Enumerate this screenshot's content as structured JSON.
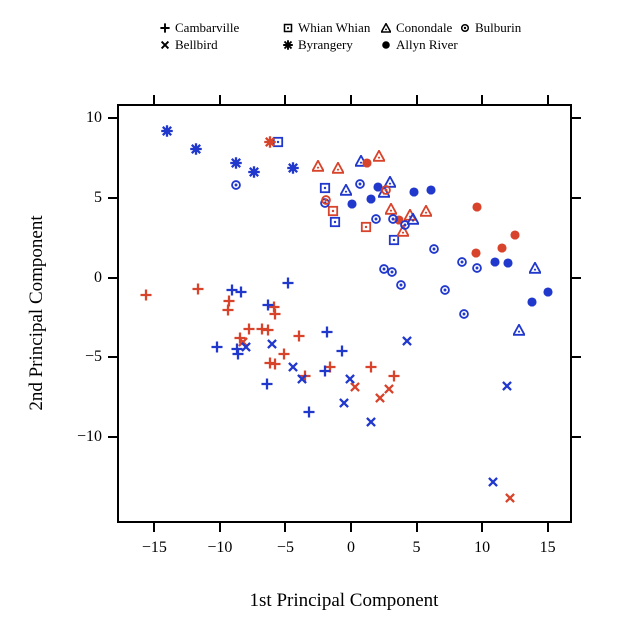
{
  "figure": {
    "background": "#ffffff",
    "axis_color": "#000000"
  },
  "colors": {
    "red_group": "#d8432b",
    "blue_group": "#2138cd",
    "legend_symbol": "#000000"
  },
  "legend": {
    "entries": [
      {
        "label": "Cambarville",
        "marker": "plus",
        "col": 0,
        "row": 0
      },
      {
        "label": "Bellbird",
        "marker": "cross",
        "col": 0,
        "row": 1
      },
      {
        "label": "Whian Whian",
        "marker": "square-dot",
        "col": 1,
        "row": 0
      },
      {
        "label": "Byrangery",
        "marker": "asterisk",
        "col": 1,
        "row": 1
      },
      {
        "label": "Conondale",
        "marker": "triangle-dot",
        "col": 2,
        "row": 0
      },
      {
        "label": "Allyn River",
        "marker": "circle-filled",
        "col": 2,
        "row": 1
      },
      {
        "label": "Bulburin",
        "marker": "circle-dot",
        "col": 3,
        "row": 0
      }
    ]
  },
  "chart_data": {
    "type": "scatter",
    "title": "",
    "xlabel": "1st Principal Component",
    "ylabel": "2nd Principal Component",
    "xlim": [
      -17.85,
      16.86
    ],
    "ylim": [
      -15.42,
      10.9
    ],
    "xticks": [
      -15,
      -10,
      -5,
      0,
      5,
      10,
      15
    ],
    "yticks": [
      -10,
      -5,
      0,
      5,
      10
    ],
    "grid": false,
    "legend_position": "top",
    "point_colors": {
      "r": "#d8432b",
      "b": "#2138cd"
    },
    "series": [
      {
        "name": "Cambarville",
        "marker": "plus",
        "points": [
          [
            -15.6,
            -1.1,
            "r"
          ],
          [
            -11.7,
            -0.75,
            "r"
          ],
          [
            -9.3,
            -1.5,
            "r"
          ],
          [
            -9.4,
            -2.05,
            "r"
          ],
          [
            -5.9,
            -1.85,
            "r"
          ],
          [
            -5.8,
            -2.3,
            "r"
          ],
          [
            -7.8,
            -3.25,
            "r"
          ],
          [
            -6.8,
            -3.25,
            "r"
          ],
          [
            -6.3,
            -3.3,
            "r"
          ],
          [
            -8.5,
            -3.8,
            "r"
          ],
          [
            -4.0,
            -3.7,
            "r"
          ],
          [
            -5.1,
            -4.8,
            "r"
          ],
          [
            -6.2,
            -5.4,
            "r"
          ],
          [
            -5.8,
            -5.45,
            "r"
          ],
          [
            -1.6,
            -5.65,
            "r"
          ],
          [
            1.5,
            -5.6,
            "r"
          ],
          [
            3.3,
            -6.2,
            "r"
          ],
          [
            -3.5,
            -6.2,
            "r"
          ],
          [
            -9.1,
            -0.8,
            "b"
          ],
          [
            -8.4,
            -0.9,
            "b"
          ],
          [
            -4.8,
            -0.35,
            "b"
          ],
          [
            -6.35,
            -1.7,
            "b"
          ],
          [
            -10.25,
            -4.35,
            "b"
          ],
          [
            -8.7,
            -4.5,
            "b"
          ],
          [
            -8.6,
            -4.8,
            "b"
          ],
          [
            -1.8,
            -3.4,
            "b"
          ],
          [
            -0.7,
            -4.6,
            "b"
          ],
          [
            -2.0,
            -5.9,
            "b"
          ],
          [
            -6.4,
            -6.7,
            "b"
          ],
          [
            -3.2,
            -8.45,
            "b"
          ]
        ]
      },
      {
        "name": "Bellbird",
        "marker": "cross",
        "points": [
          [
            -8.2,
            -4.05,
            "r"
          ],
          [
            0.3,
            -6.9,
            "r"
          ],
          [
            2.9,
            -7.0,
            "r"
          ],
          [
            2.2,
            -7.55,
            "r"
          ],
          [
            12.1,
            -13.85,
            "r"
          ],
          [
            -8.0,
            -4.35,
            "b"
          ],
          [
            -6.0,
            -4.15,
            "b"
          ],
          [
            -4.4,
            -5.65,
            "b"
          ],
          [
            -3.7,
            -6.35,
            "b"
          ],
          [
            -0.1,
            -6.4,
            "b"
          ],
          [
            4.3,
            -4.0,
            "b"
          ],
          [
            -0.5,
            -7.9,
            "b"
          ],
          [
            1.5,
            -9.1,
            "b"
          ],
          [
            11.9,
            -6.8,
            "b"
          ],
          [
            10.8,
            -12.85,
            "b"
          ]
        ]
      },
      {
        "name": "Whian Whian",
        "marker": "square-dot",
        "points": [
          [
            -5.6,
            8.5,
            "b"
          ],
          [
            -2.0,
            5.65,
            "b"
          ],
          [
            -1.2,
            3.5,
            "b"
          ],
          [
            3.3,
            2.35,
            "b"
          ],
          [
            -1.4,
            4.2,
            "r"
          ],
          [
            1.15,
            3.2,
            "r"
          ]
        ]
      },
      {
        "name": "Byrangery",
        "marker": "asterisk",
        "points": [
          [
            -14.0,
            9.2,
            "b"
          ],
          [
            -11.8,
            8.1,
            "b"
          ],
          [
            -8.8,
            7.2,
            "b"
          ],
          [
            -7.4,
            6.6,
            "b"
          ],
          [
            -4.4,
            6.9,
            "b"
          ],
          [
            -6.2,
            8.5,
            "r"
          ]
        ]
      },
      {
        "name": "Conondale",
        "marker": "triangle-dot",
        "points": [
          [
            -2.5,
            7.0,
            "r"
          ],
          [
            -1.0,
            6.9,
            "r"
          ],
          [
            2.1,
            7.65,
            "r"
          ],
          [
            3.05,
            4.3,
            "r"
          ],
          [
            4.5,
            3.9,
            "r"
          ],
          [
            5.7,
            4.2,
            "r"
          ],
          [
            4.0,
            2.9,
            "r"
          ],
          [
            0.8,
            7.3,
            "b"
          ],
          [
            3.0,
            6.0,
            "b"
          ],
          [
            -0.4,
            5.5,
            "b"
          ],
          [
            2.5,
            5.4,
            "b"
          ],
          [
            4.7,
            3.7,
            "b"
          ],
          [
            14.0,
            0.6,
            "b"
          ],
          [
            12.8,
            -3.3,
            "b"
          ]
        ]
      },
      {
        "name": "Allyn River",
        "marker": "circle-filled",
        "points": [
          [
            1.2,
            7.2,
            "r"
          ],
          [
            3.65,
            3.6,
            "r"
          ],
          [
            9.6,
            4.4,
            "r"
          ],
          [
            12.5,
            2.7,
            "r"
          ],
          [
            11.5,
            1.85,
            "r"
          ],
          [
            9.5,
            1.55,
            "r"
          ],
          [
            2.05,
            5.7,
            "b"
          ],
          [
            4.8,
            5.35,
            "b"
          ],
          [
            6.1,
            5.5,
            "b"
          ],
          [
            0.05,
            4.6,
            "b"
          ],
          [
            1.55,
            4.95,
            "b"
          ],
          [
            11.0,
            0.95,
            "b"
          ],
          [
            12.0,
            0.9,
            "b"
          ],
          [
            15.0,
            -0.9,
            "b"
          ],
          [
            13.8,
            -1.55,
            "b"
          ]
        ]
      },
      {
        "name": "Bulburin",
        "marker": "circle-dot",
        "points": [
          [
            -8.8,
            5.8,
            "b"
          ],
          [
            0.65,
            5.9,
            "b"
          ],
          [
            1.9,
            3.7,
            "b"
          ],
          [
            3.2,
            3.7,
            "b"
          ],
          [
            4.1,
            3.3,
            "b"
          ],
          [
            2.5,
            0.55,
            "b"
          ],
          [
            3.1,
            0.35,
            "b"
          ],
          [
            3.85,
            -0.5,
            "b"
          ],
          [
            6.3,
            1.8,
            "b"
          ],
          [
            8.45,
            1.0,
            "b"
          ],
          [
            9.6,
            0.6,
            "b"
          ],
          [
            7.2,
            -0.8,
            "b"
          ],
          [
            8.6,
            -2.3,
            "b"
          ],
          [
            -2.0,
            4.65,
            "b"
          ],
          [
            -1.9,
            4.85,
            "r"
          ],
          [
            2.7,
            5.5,
            "r"
          ]
        ]
      }
    ]
  }
}
